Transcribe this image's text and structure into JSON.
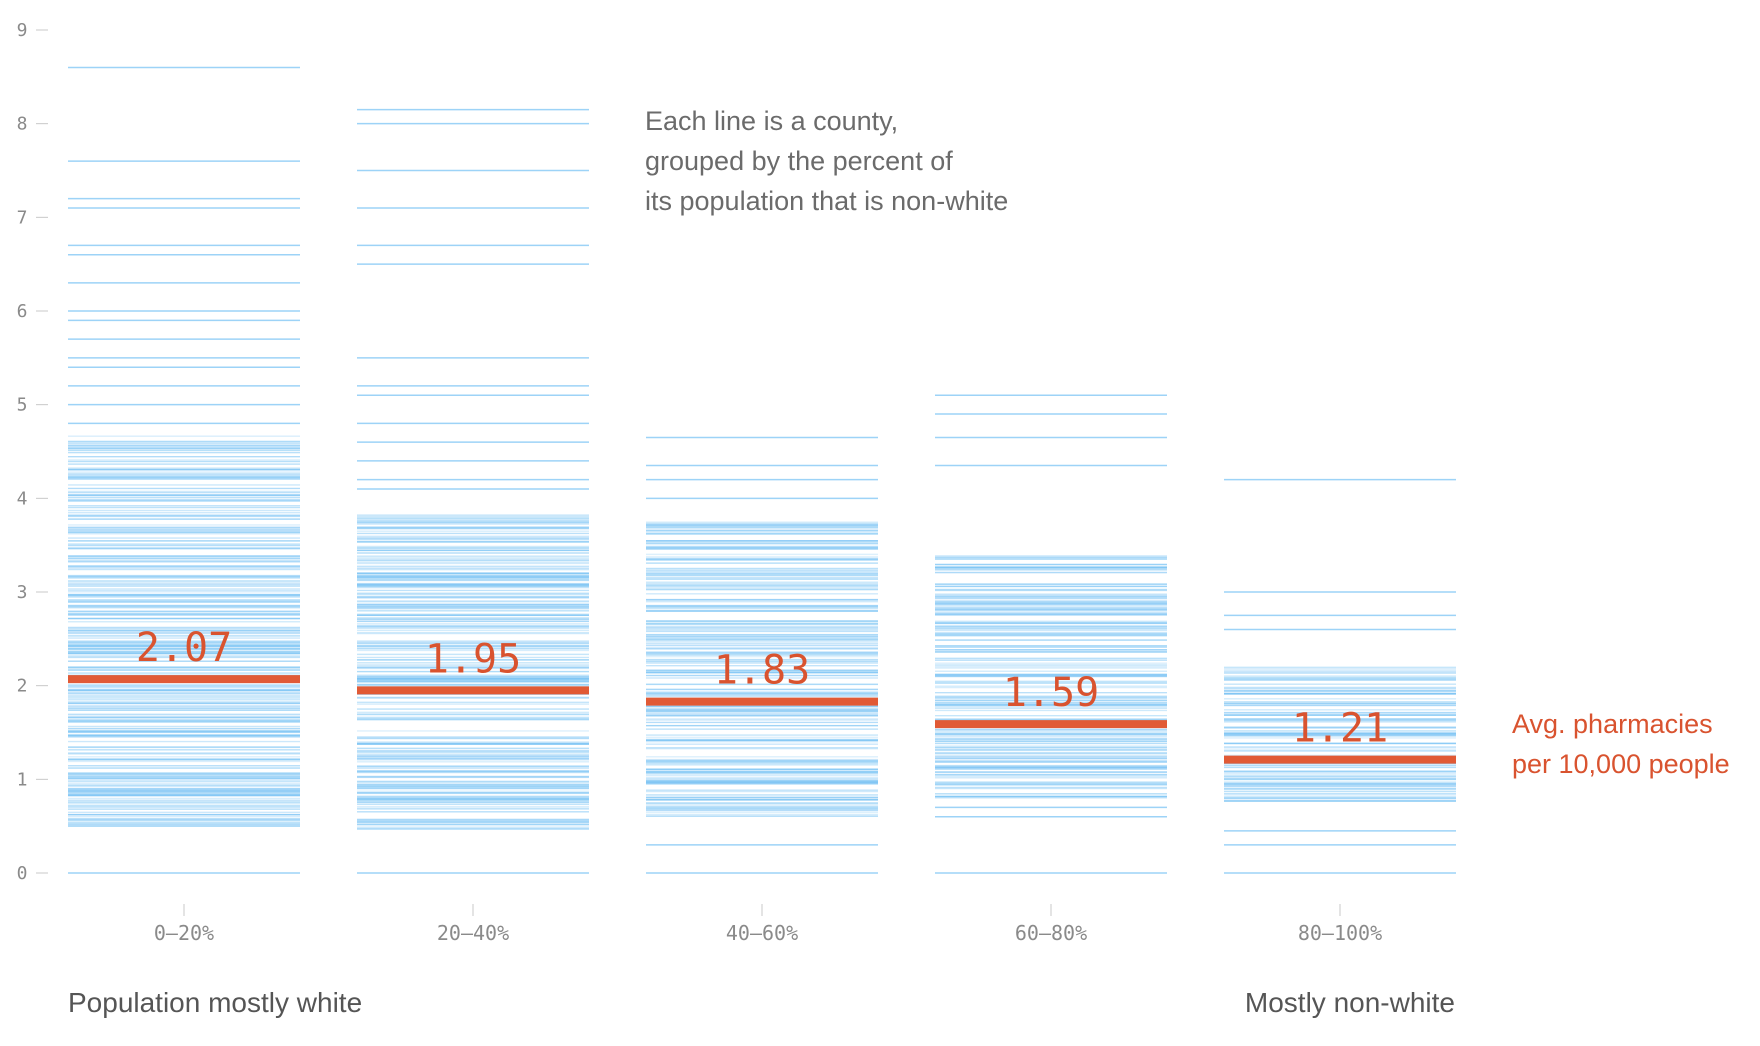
{
  "chart_data": {
    "type": "bar",
    "categories": [
      "0–20%",
      "20–40%",
      "40–60%",
      "60–80%",
      "80–100%"
    ],
    "ylim": [
      0,
      9
    ],
    "yticks": [
      "0",
      "1",
      "2",
      "3",
      "4",
      "5",
      "6",
      "7",
      "8",
      "9"
    ],
    "averages": [
      2.07,
      1.95,
      1.83,
      1.59,
      1.21
    ],
    "average_labels": [
      "2.07",
      "1.95",
      "1.83",
      "1.59",
      "1.21"
    ],
    "groups": [
      {
        "min": 0.5,
        "max": 4.7,
        "high_values": [
          4.8,
          5.0,
          5.2,
          5.4,
          5.5,
          5.7,
          5.9,
          6.0,
          6.3,
          6.6,
          6.7,
          7.1,
          7.2,
          7.6,
          8.6
        ],
        "low_values": [
          0.0
        ]
      },
      {
        "min": 0.45,
        "max": 3.85,
        "high_values": [
          4.1,
          4.2,
          4.4,
          4.6,
          4.8,
          5.1,
          5.2,
          5.5,
          6.5,
          6.7,
          7.1,
          7.5,
          8.0,
          8.15
        ],
        "low_values": [
          0.0
        ]
      },
      {
        "min": 0.6,
        "max": 3.75,
        "high_values": [
          4.0,
          4.2,
          4.35,
          4.65
        ],
        "low_values": [
          0.3,
          0.0
        ]
      },
      {
        "min": 0.8,
        "max": 3.4,
        "high_values": [
          4.35,
          4.65,
          4.9,
          5.1
        ],
        "low_values": [
          0.6,
          0.7,
          0.0
        ]
      },
      {
        "min": 0.75,
        "max": 2.2,
        "high_values": [
          2.6,
          2.75,
          3.0,
          4.2
        ],
        "low_values": [
          0.3,
          0.45,
          0.0
        ]
      }
    ]
  },
  "annotation": {
    "line1": "Each line is a county,",
    "line2": "grouped by the percent of",
    "line3": "its population that is non-white"
  },
  "legend": {
    "line1": "Avg. pharmacies",
    "line2": "per 10,000 people"
  },
  "footer": {
    "left": "Population mostly white",
    "right": "Mostly non-white"
  },
  "colors": {
    "county_line": "#7cc4f4",
    "average_line": "#e15a35",
    "average_text": "#d9532f"
  }
}
